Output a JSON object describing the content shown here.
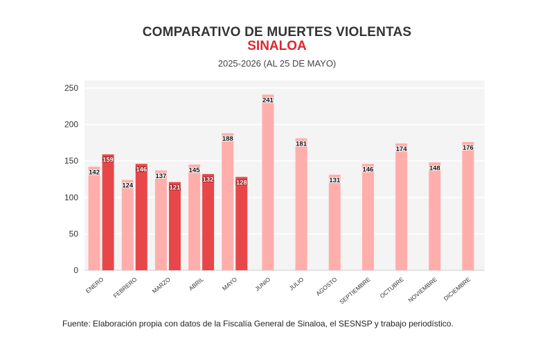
{
  "header": {
    "title": "COMPARATIVO DE MUERTES VIOLENTAS",
    "subtitle": "SINALOA",
    "period": "2025-2026 (AL 25 DE MAYO)"
  },
  "footer": {
    "source": "Fuente: Elaboración propia con datos de la Fiscalía General de Sinaloa, el SESNSP y trabajo periodístico."
  },
  "colors": {
    "series_2025": "#ffaeac",
    "series_2026": "#e8474a",
    "plot_bg": "#f4f4f4"
  },
  "chart_data": {
    "type": "bar",
    "title": "COMPARATIVO DE MUERTES VIOLENTAS",
    "subtitle": "SINALOA",
    "categories": [
      "ENERO",
      "FEBRERO",
      "MARZO",
      "ABRIL",
      "MAYO",
      "JUNIO",
      "JULIO",
      "AGOSTO",
      "SEPTIEMBRE",
      "OCTUBRE",
      "NOVIEMBRE",
      "DICIEMBRE"
    ],
    "series": [
      {
        "values": [
          142,
          124,
          137,
          145,
          188,
          241,
          181,
          131,
          146,
          174,
          148,
          176
        ]
      },
      {
        "values": [
          159,
          146,
          121,
          132,
          128,
          null,
          null,
          null,
          null,
          null,
          null,
          null
        ]
      }
    ],
    "yticks": [
      0,
      50,
      100,
      150,
      200,
      250
    ],
    "ylim": [
      0,
      250
    ],
    "grid": true,
    "legend": "none"
  }
}
